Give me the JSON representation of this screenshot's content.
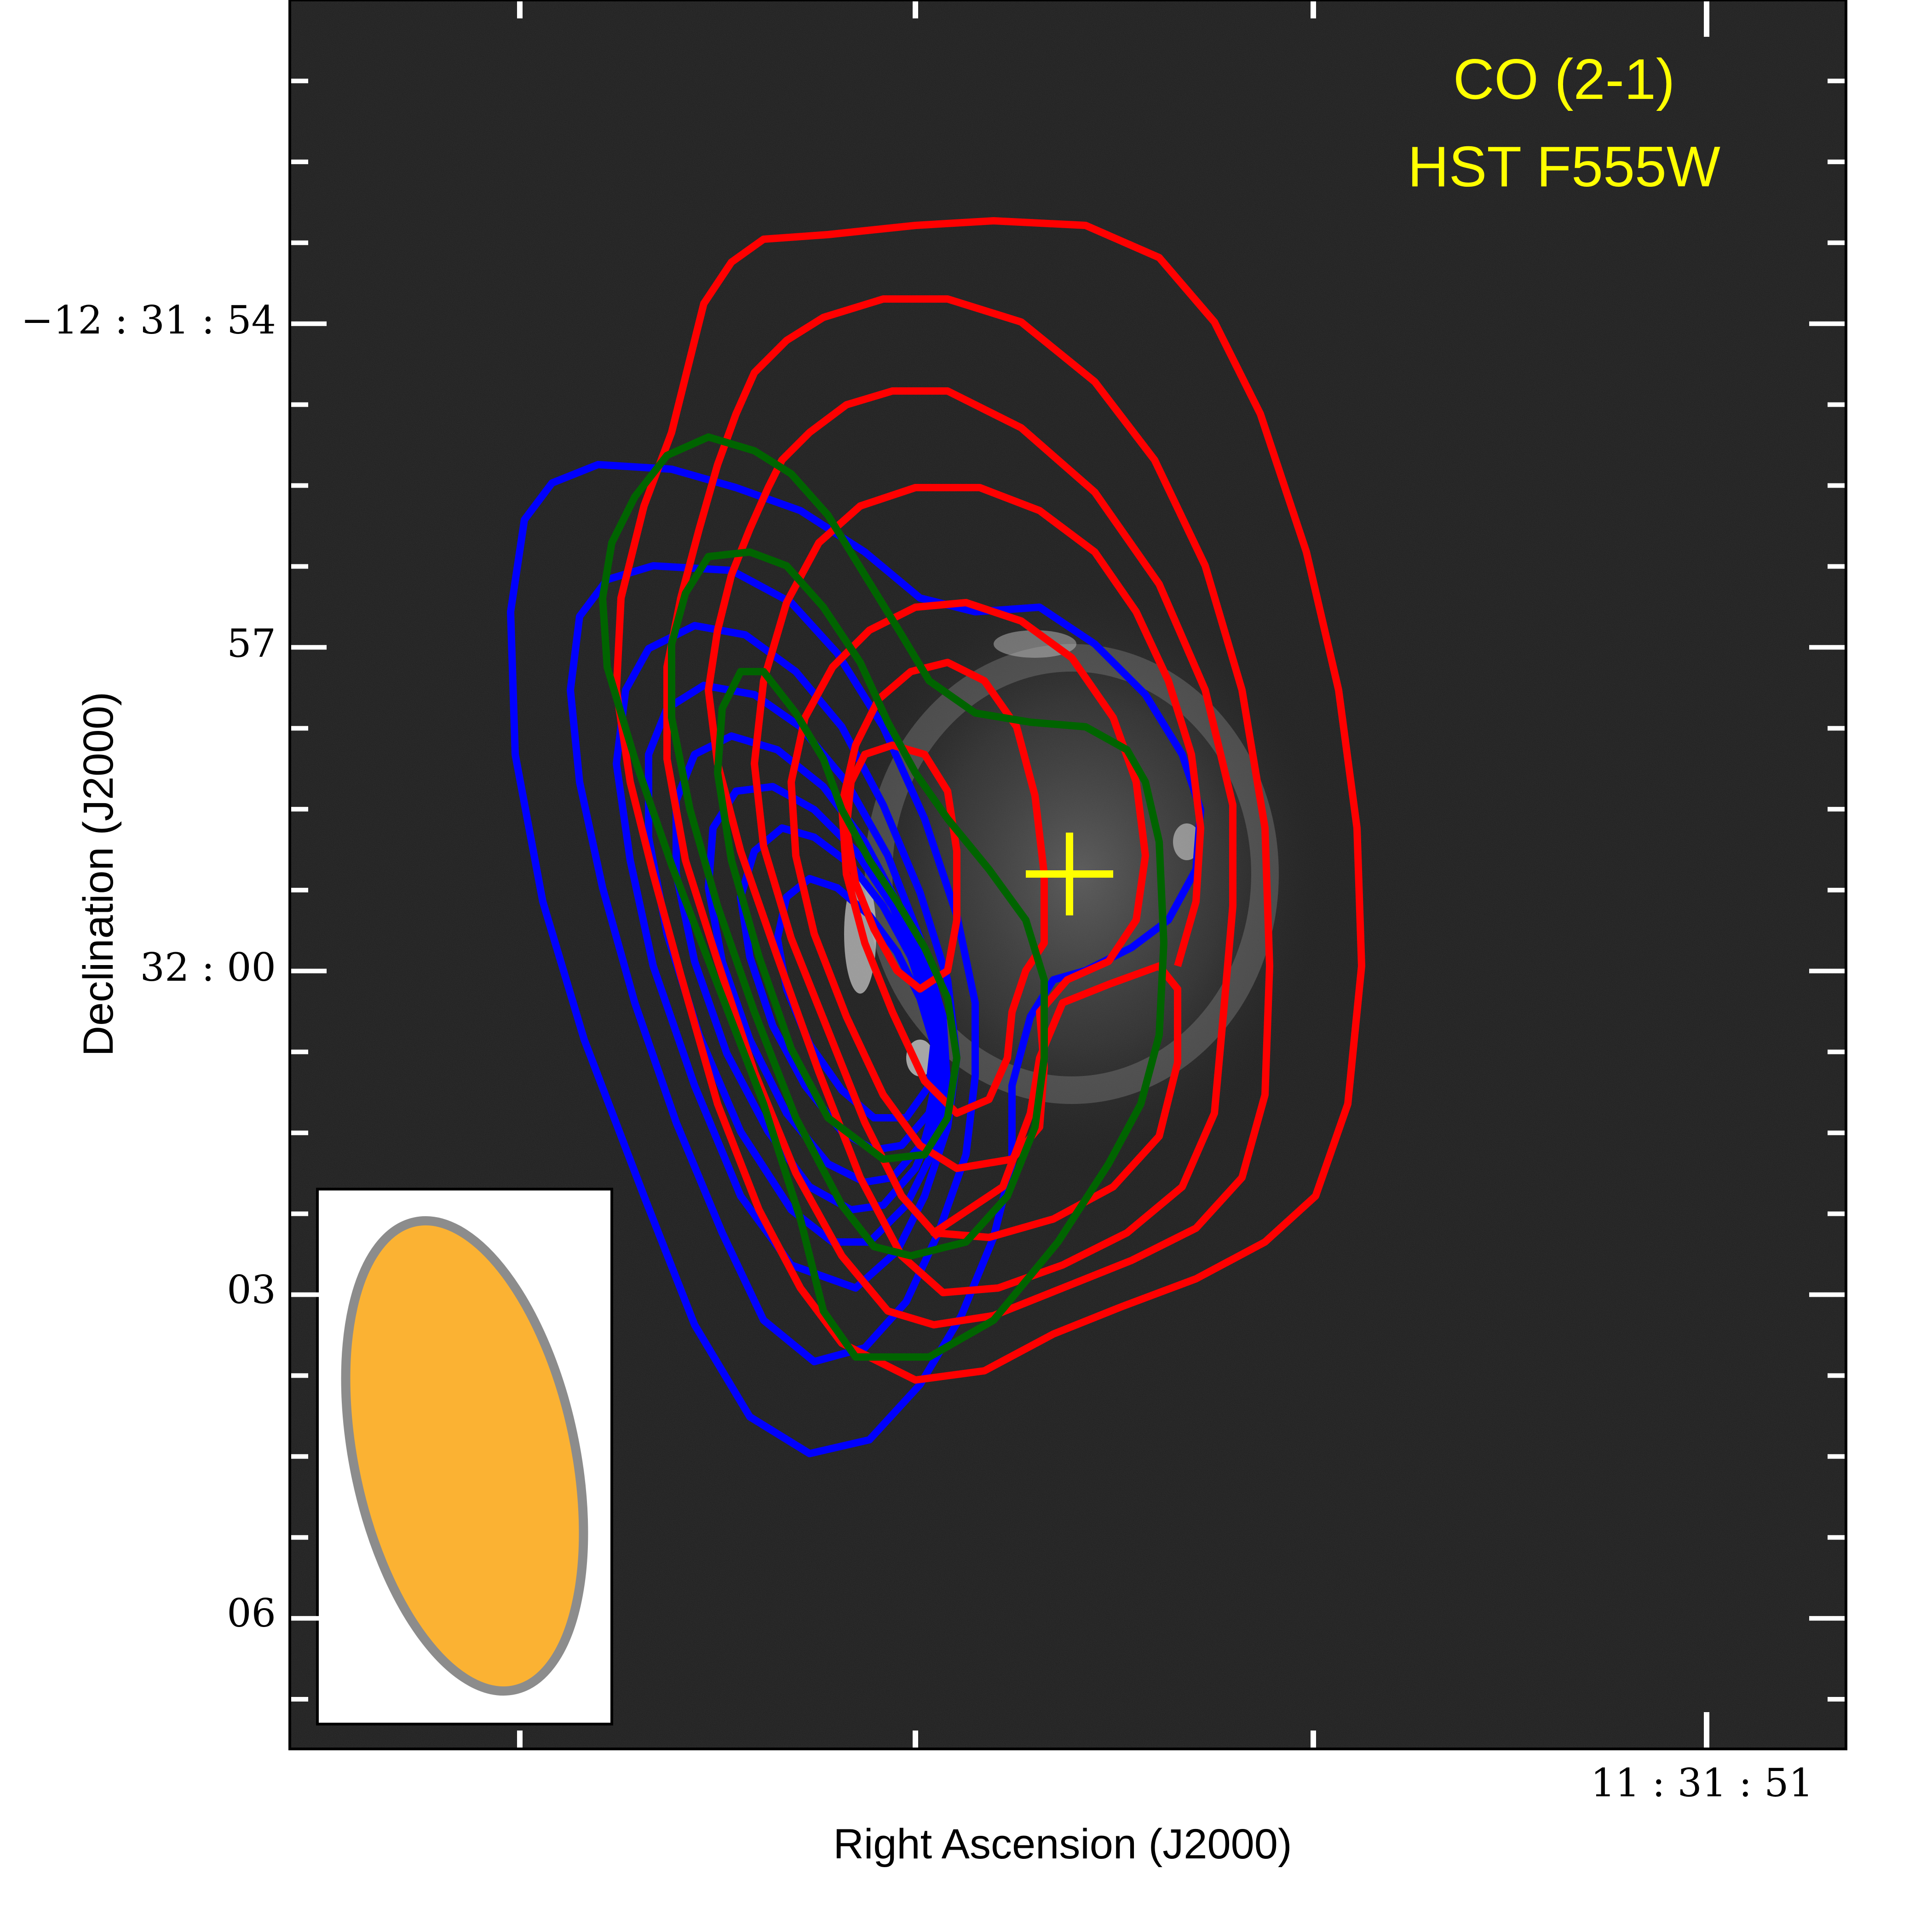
{
  "figure": {
    "label_lines": [
      "CO (2-1)",
      "HST F555W"
    ],
    "x_axis_label": "Right Ascension (J2000)",
    "y_axis_label": "Declination (J2000)",
    "x_tick_labels": [
      "11 : 31 : 51"
    ],
    "y_tick_labels": [
      "−12 : 31 : 54",
      "57",
      "32 : 00",
      "03",
      "06"
    ],
    "colors": {
      "label_text": "#ffff00",
      "center_cross": "#ffff00",
      "contour_blue": "#0000ff",
      "contour_red": "#ff0000",
      "contour_green": "#006400",
      "beam_fill": "#fbb233",
      "beam_edge": "#8c8c8c",
      "background_image": "#1a1a1a",
      "ticks": "#ffffff"
    }
  }
}
